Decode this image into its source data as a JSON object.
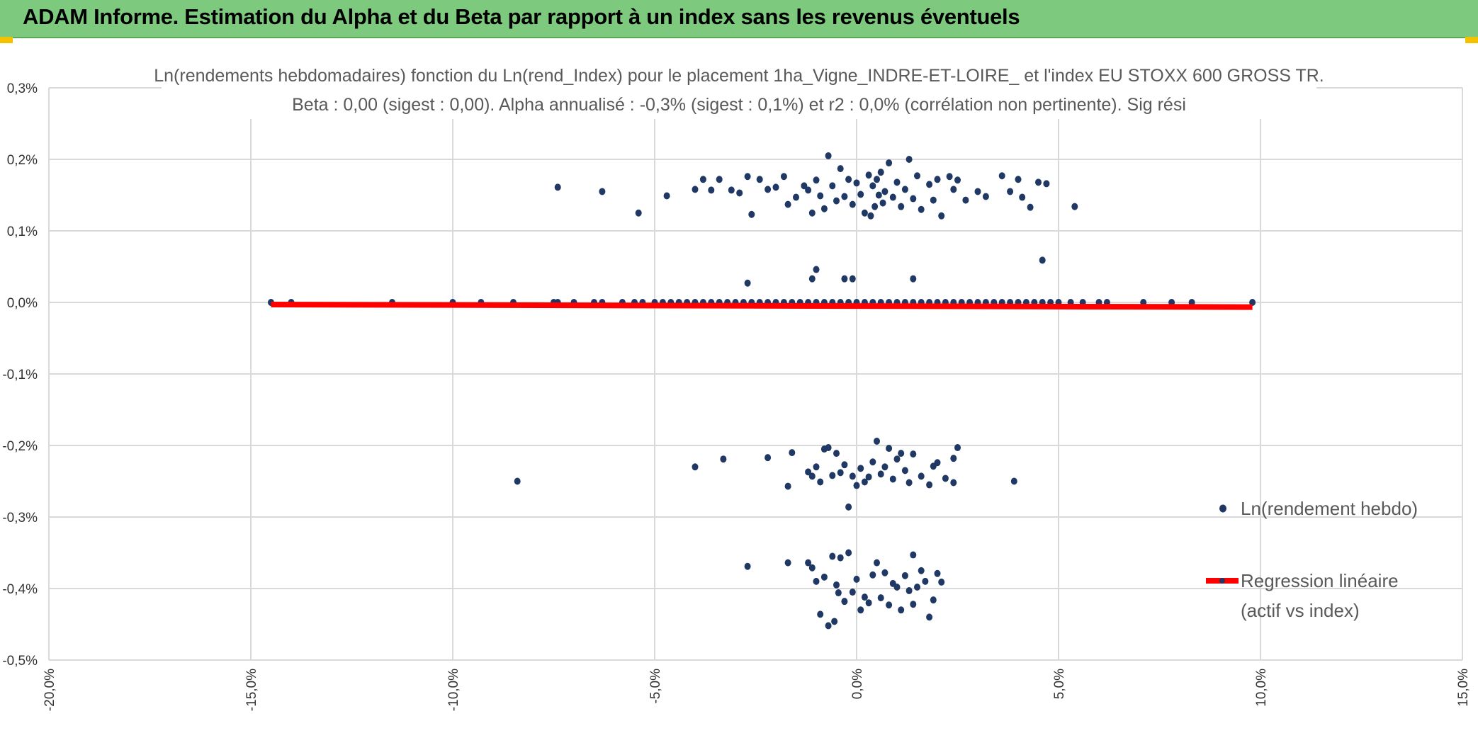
{
  "header": {
    "title": "ADAM Informe. Estimation du Alpha et du Beta par rapport à un index sans les revenus éventuels"
  },
  "colors": {
    "banner": "#7dc97e",
    "points": "#203864",
    "regression": "#ff0000",
    "grid": "#d9d9d9"
  },
  "chart_data": {
    "type": "scatter",
    "title": "Ln(rendements hebdomadaires) fonction du Ln(rend_Index) pour le placement 1ha_Vigne_INDRE-ET-LOIRE_ et l'index EU STOXX 600 GROSS TR.",
    "subtitle": "Beta : 0,00 (sigest : 0,00). Alpha annualisé : -0,3% (sigest : 0,1%) et r2 : 0,0% (corrélation non pertinente). Sig rési",
    "xlabel": "",
    "ylabel": "",
    "xlim": [
      -20,
      15
    ],
    "ylim": [
      -0.5,
      0.3
    ],
    "x_ticks": [
      -20,
      -15,
      -10,
      -5,
      0,
      5,
      10,
      15
    ],
    "x_tick_labels": [
      "-20,0%",
      "-15,0%",
      "-10,0%",
      "-5,0%",
      "0,0%",
      "5,0%",
      "10,0%",
      "15,0%"
    ],
    "y_ticks": [
      0.3,
      0.2,
      0.1,
      0.0,
      -0.1,
      -0.2,
      -0.3,
      -0.4,
      -0.5
    ],
    "y_tick_labels": [
      "0,3%",
      "0,2%",
      "0,1%",
      "0,0%",
      "-0,1%",
      "-0,2%",
      "-0,3%",
      "-0,4%",
      "-0,5%"
    ],
    "grid": true,
    "legend_position": "right",
    "series": [
      {
        "name": "Ln(rendement hebdo)",
        "kind": "scatter",
        "points": [
          [
            -14.5,
            0
          ],
          [
            -14,
            0
          ],
          [
            -11.5,
            0
          ],
          [
            -10,
            0
          ],
          [
            -9.3,
            0
          ],
          [
            -8.5,
            0
          ],
          [
            -7.5,
            0
          ],
          [
            -7.4,
            0
          ],
          [
            -7,
            0
          ],
          [
            -6.5,
            0
          ],
          [
            -6.3,
            0
          ],
          [
            -5.8,
            0
          ],
          [
            -5.5,
            0
          ],
          [
            -5.3,
            0
          ],
          [
            -5,
            0
          ],
          [
            -4.8,
            0
          ],
          [
            -4.6,
            0
          ],
          [
            -4.4,
            0
          ],
          [
            -4.2,
            0
          ],
          [
            -4,
            0
          ],
          [
            -3.8,
            0
          ],
          [
            -3.6,
            0
          ],
          [
            -3.4,
            0
          ],
          [
            -3.2,
            0
          ],
          [
            -3,
            0
          ],
          [
            -2.8,
            0
          ],
          [
            -2.6,
            0
          ],
          [
            -2.4,
            0
          ],
          [
            -2.2,
            0
          ],
          [
            -2,
            0
          ],
          [
            -1.8,
            0
          ],
          [
            -1.6,
            0
          ],
          [
            -1.4,
            0
          ],
          [
            -1.2,
            0
          ],
          [
            -1,
            0
          ],
          [
            -0.8,
            0
          ],
          [
            -0.6,
            0
          ],
          [
            -0.4,
            0
          ],
          [
            -0.2,
            0
          ],
          [
            0,
            0
          ],
          [
            0.2,
            0
          ],
          [
            0.4,
            0
          ],
          [
            0.6,
            0
          ],
          [
            0.8,
            0
          ],
          [
            1,
            0
          ],
          [
            1.2,
            0
          ],
          [
            1.4,
            0
          ],
          [
            1.6,
            0
          ],
          [
            1.8,
            0
          ],
          [
            2,
            0
          ],
          [
            2.2,
            0
          ],
          [
            2.4,
            0
          ],
          [
            2.6,
            0
          ],
          [
            2.8,
            0
          ],
          [
            3,
            0
          ],
          [
            3.2,
            0
          ],
          [
            3.4,
            0
          ],
          [
            3.6,
            0
          ],
          [
            3.8,
            0
          ],
          [
            4,
            0
          ],
          [
            4.2,
            0
          ],
          [
            4.4,
            0
          ],
          [
            4.6,
            0
          ],
          [
            4.8,
            0
          ],
          [
            5,
            0
          ],
          [
            5.3,
            0
          ],
          [
            5.6,
            0
          ],
          [
            6,
            0
          ],
          [
            6.2,
            0
          ],
          [
            7.1,
            0
          ],
          [
            7.8,
            0
          ],
          [
            8.3,
            0
          ],
          [
            9.8,
            0
          ],
          [
            -2.7,
            0.027
          ],
          [
            -1.1,
            0.033
          ],
          [
            -1,
            0.046
          ],
          [
            -0.3,
            0.033
          ],
          [
            -0.1,
            0.033
          ],
          [
            1.4,
            0.033
          ],
          [
            4.6,
            0.059
          ],
          [
            -7.4,
            0.161
          ],
          [
            -6.3,
            0.155
          ],
          [
            -5.4,
            0.125
          ],
          [
            -4.7,
            0.149
          ],
          [
            -4,
            0.158
          ],
          [
            -3.8,
            0.172
          ],
          [
            -3.6,
            0.157
          ],
          [
            -3.4,
            0.172
          ],
          [
            -3.1,
            0.157
          ],
          [
            -2.9,
            0.153
          ],
          [
            -2.7,
            0.176
          ],
          [
            -2.6,
            0.123
          ],
          [
            -2.4,
            0.172
          ],
          [
            -2.2,
            0.158
          ],
          [
            -2,
            0.161
          ],
          [
            -1.8,
            0.176
          ],
          [
            -1.7,
            0.137
          ],
          [
            -1.5,
            0.147
          ],
          [
            -1.3,
            0.163
          ],
          [
            -1.2,
            0.157
          ],
          [
            -1.1,
            0.125
          ],
          [
            -1,
            0.171
          ],
          [
            -0.9,
            0.149
          ],
          [
            -0.8,
            0.131
          ],
          [
            -0.7,
            0.205
          ],
          [
            -0.6,
            0.163
          ],
          [
            -0.5,
            0.142
          ],
          [
            -0.4,
            0.187
          ],
          [
            -0.3,
            0.148
          ],
          [
            -0.2,
            0.172
          ],
          [
            -0.1,
            0.137
          ],
          [
            0,
            0.167
          ],
          [
            0.1,
            0.151
          ],
          [
            0.2,
            0.125
          ],
          [
            0.3,
            0.178
          ],
          [
            0.35,
            0.121
          ],
          [
            0.4,
            0.163
          ],
          [
            0.45,
            0.134
          ],
          [
            0.5,
            0.172
          ],
          [
            0.55,
            0.15
          ],
          [
            0.6,
            0.182
          ],
          [
            0.65,
            0.139
          ],
          [
            0.7,
            0.155
          ],
          [
            0.8,
            0.195
          ],
          [
            0.9,
            0.147
          ],
          [
            1,
            0.168
          ],
          [
            1.1,
            0.134
          ],
          [
            1.2,
            0.158
          ],
          [
            1.3,
            0.2
          ],
          [
            1.4,
            0.145
          ],
          [
            1.5,
            0.177
          ],
          [
            1.6,
            0.13
          ],
          [
            1.8,
            0.165
          ],
          [
            1.9,
            0.143
          ],
          [
            2,
            0.172
          ],
          [
            2.1,
            0.121
          ],
          [
            2.3,
            0.176
          ],
          [
            2.4,
            0.158
          ],
          [
            2.5,
            0.171
          ],
          [
            2.7,
            0.143
          ],
          [
            3,
            0.155
          ],
          [
            3.2,
            0.148
          ],
          [
            3.6,
            0.177
          ],
          [
            3.8,
            0.155
          ],
          [
            4,
            0.172
          ],
          [
            4.1,
            0.147
          ],
          [
            4.3,
            0.133
          ],
          [
            4.5,
            0.168
          ],
          [
            4.7,
            0.166
          ],
          [
            5.4,
            0.134
          ],
          [
            -8.4,
            -0.25
          ],
          [
            -4,
            -0.23
          ],
          [
            -3.3,
            -0.219
          ],
          [
            -2.2,
            -0.217
          ],
          [
            -1.7,
            -0.257
          ],
          [
            -1.6,
            -0.21
          ],
          [
            -1.2,
            -0.237
          ],
          [
            -1.1,
            -0.243
          ],
          [
            -1,
            -0.23
          ],
          [
            -0.9,
            -0.251
          ],
          [
            -0.8,
            -0.205
          ],
          [
            -0.7,
            -0.203
          ],
          [
            -0.6,
            -0.242
          ],
          [
            -0.5,
            -0.211
          ],
          [
            -0.4,
            -0.238
          ],
          [
            -0.3,
            -0.227
          ],
          [
            -0.2,
            -0.286
          ],
          [
            -0.1,
            -0.243
          ],
          [
            0,
            -0.256
          ],
          [
            0.1,
            -0.232
          ],
          [
            0.2,
            -0.251
          ],
          [
            0.3,
            -0.244
          ],
          [
            0.4,
            -0.223
          ],
          [
            0.5,
            -0.194
          ],
          [
            0.6,
            -0.24
          ],
          [
            0.7,
            -0.23
          ],
          [
            0.8,
            -0.204
          ],
          [
            0.9,
            -0.247
          ],
          [
            1,
            -0.219
          ],
          [
            1.1,
            -0.211
          ],
          [
            1.2,
            -0.235
          ],
          [
            1.3,
            -0.252
          ],
          [
            1.4,
            -0.212
          ],
          [
            1.6,
            -0.243
          ],
          [
            1.8,
            -0.255
          ],
          [
            1.9,
            -0.229
          ],
          [
            2,
            -0.224
          ],
          [
            2.2,
            -0.246
          ],
          [
            2.4,
            -0.218
          ],
          [
            2.5,
            -0.203
          ],
          [
            2.4,
            -0.252
          ],
          [
            3.9,
            -0.25
          ],
          [
            -2.7,
            -0.369
          ],
          [
            -1.7,
            -0.364
          ],
          [
            -1.2,
            -0.364
          ],
          [
            -1.1,
            -0.371
          ],
          [
            -1,
            -0.39
          ],
          [
            -0.9,
            -0.436
          ],
          [
            -0.8,
            -0.384
          ],
          [
            -0.7,
            -0.452
          ],
          [
            -0.6,
            -0.355
          ],
          [
            -0.55,
            -0.446
          ],
          [
            -0.5,
            -0.395
          ],
          [
            -0.45,
            -0.406
          ],
          [
            -0.4,
            -0.357
          ],
          [
            -0.3,
            -0.418
          ],
          [
            -0.2,
            -0.35
          ],
          [
            -0.1,
            -0.405
          ],
          [
            0,
            -0.387
          ],
          [
            0.1,
            -0.43
          ],
          [
            0.2,
            -0.412
          ],
          [
            0.3,
            -0.42
          ],
          [
            0.4,
            -0.381
          ],
          [
            0.5,
            -0.364
          ],
          [
            0.6,
            -0.413
          ],
          [
            0.7,
            -0.378
          ],
          [
            0.8,
            -0.423
          ],
          [
            0.9,
            -0.393
          ],
          [
            1,
            -0.398
          ],
          [
            1.1,
            -0.43
          ],
          [
            1.2,
            -0.382
          ],
          [
            1.3,
            -0.403
          ],
          [
            1.4,
            -0.353
          ],
          [
            1.5,
            -0.398
          ],
          [
            1.6,
            -0.375
          ],
          [
            1.7,
            -0.39
          ],
          [
            1.8,
            -0.44
          ],
          [
            1.9,
            -0.416
          ],
          [
            2,
            -0.379
          ],
          [
            2.1,
            -0.391
          ],
          [
            1.4,
            -0.422
          ]
        ]
      },
      {
        "name": "Regression linéaire (actif vs index)",
        "legend_lines": [
          "Regression linéaire",
          "(actif vs index)"
        ],
        "kind": "line",
        "x": [
          -14.5,
          9.8
        ],
        "y": [
          -0.003,
          -0.0065
        ]
      }
    ]
  }
}
